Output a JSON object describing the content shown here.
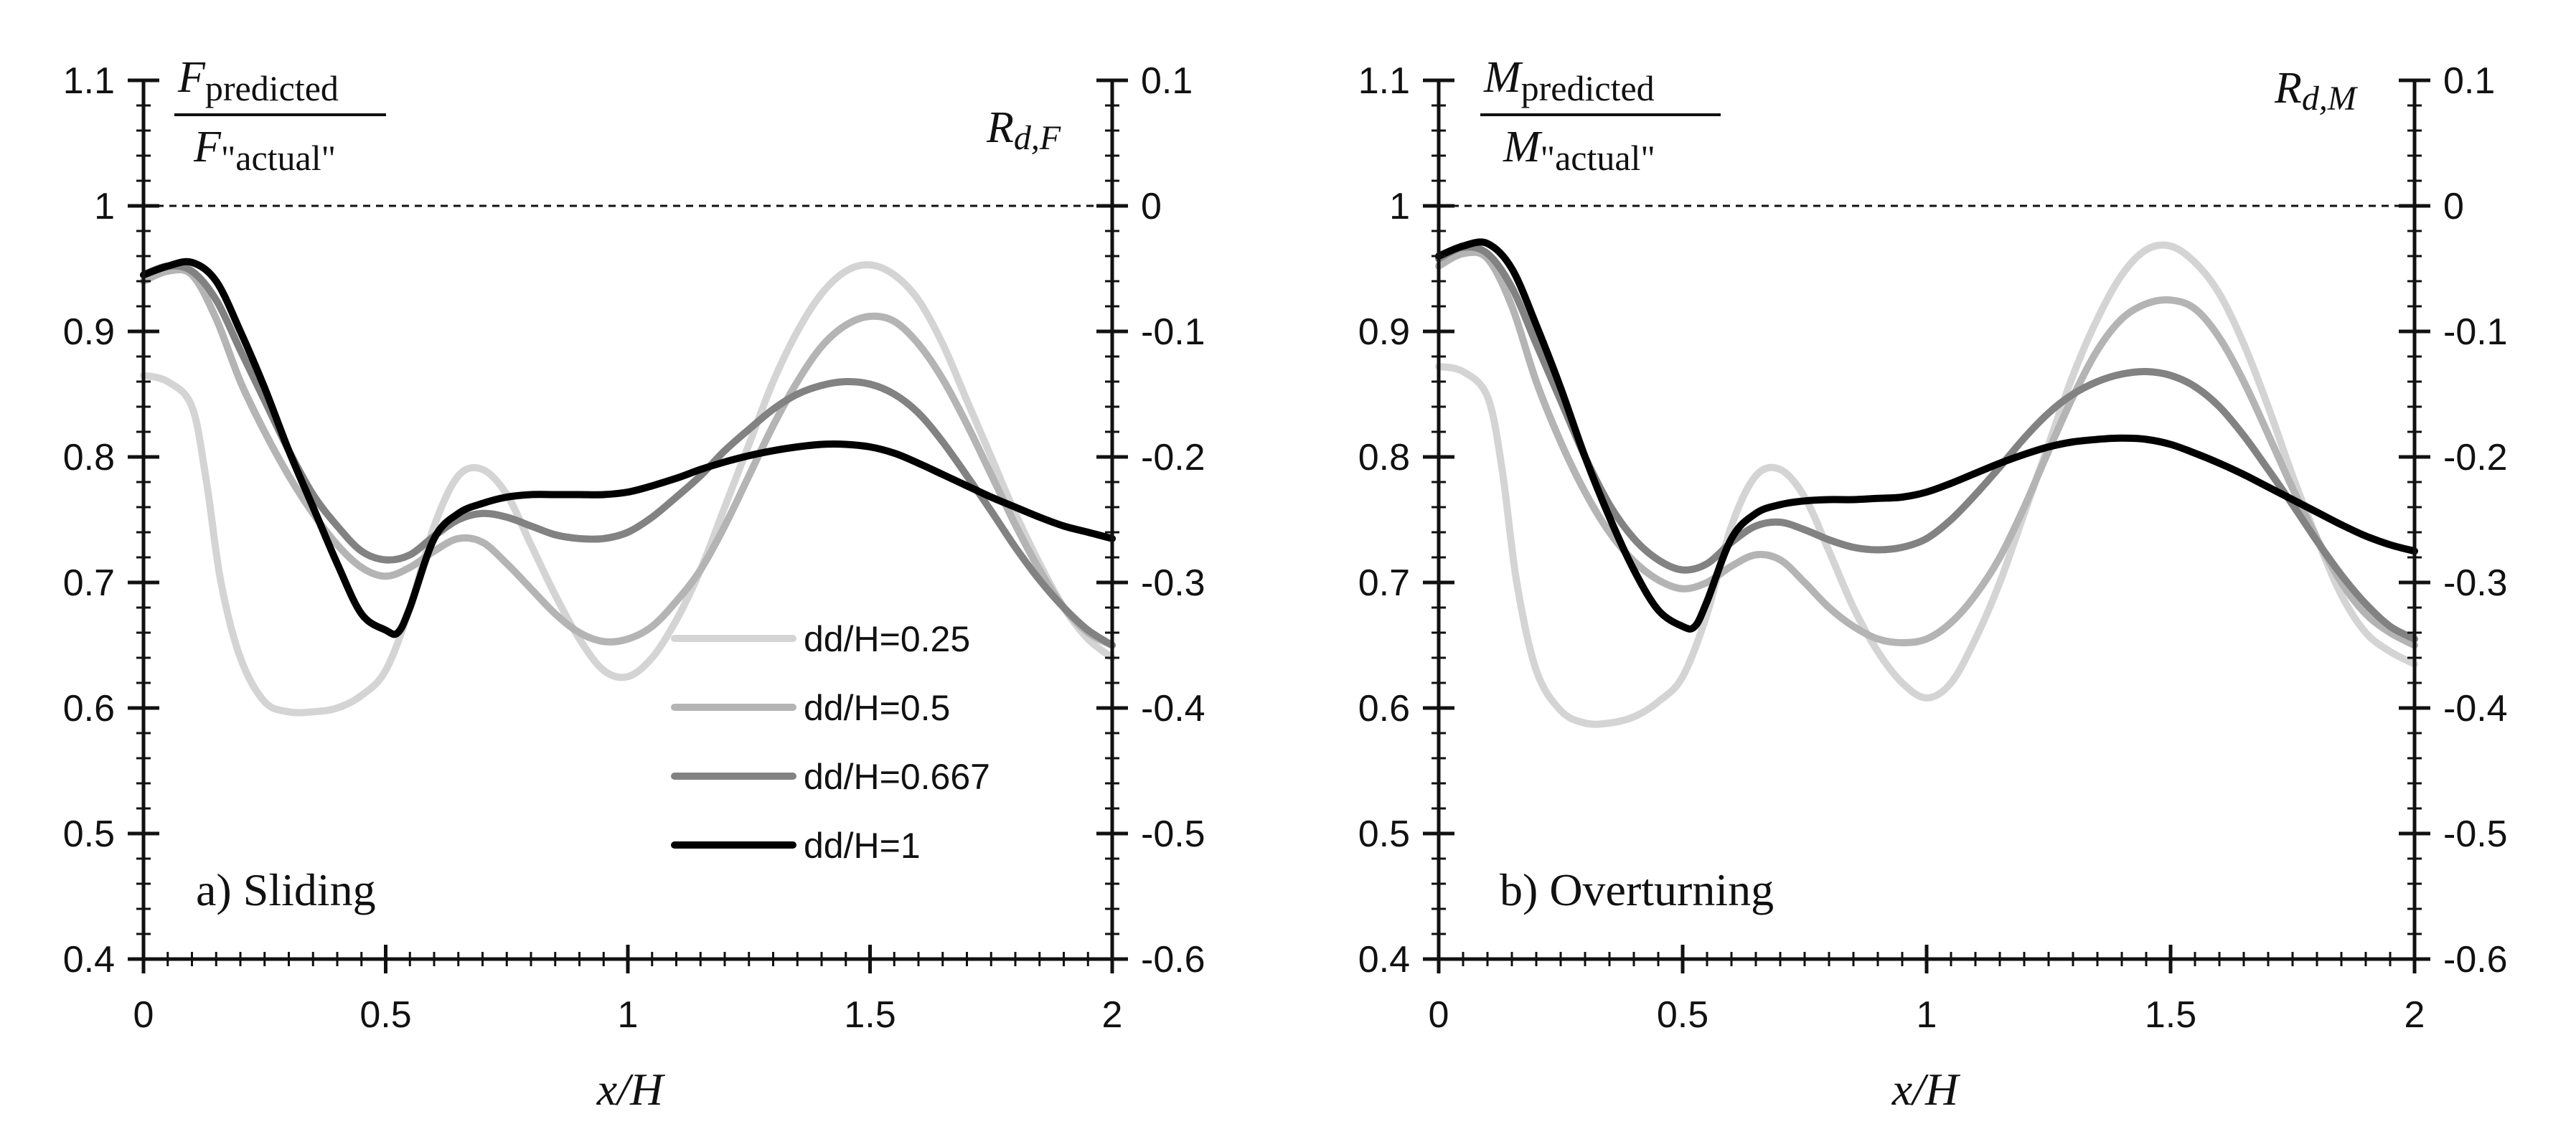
{
  "chart_data": [
    {
      "type": "line",
      "panel_label": "a) Sliding",
      "left_label": {
        "numerator": "F",
        "numerator_sub": "predicted",
        "denominator": "F",
        "denominator_sub": "\"actual\""
      },
      "right_label": {
        "main": "R",
        "sub": "d,F"
      },
      "xlabel": "x/H",
      "xlim": [
        0,
        2
      ],
      "ylim_left": [
        0.4,
        1.1
      ],
      "ylim_right": [
        -0.6,
        0.1
      ],
      "x_ticks": [
        "0",
        "0.5",
        "1",
        "1.5",
        "2"
      ],
      "y_ticks_left": [
        "0.4",
        "0.5",
        "0.6",
        "0.7",
        "0.8",
        "0.9",
        "1",
        "1.1"
      ],
      "y_ticks_right": [
        "-0.6",
        "-0.5",
        "-0.4",
        "-0.3",
        "-0.2",
        "-0.1",
        "0",
        "0.1"
      ],
      "reference_line": 1,
      "series": [
        {
          "name": "dd/H=0.25",
          "color": "#d4d4d4",
          "x": [
            0,
            0.05,
            0.1,
            0.13,
            0.16,
            0.2,
            0.25,
            0.3,
            0.35,
            0.4,
            0.45,
            0.5,
            0.55,
            0.6,
            0.65,
            0.7,
            0.75,
            0.8,
            0.85,
            0.9,
            0.95,
            1.0,
            1.05,
            1.1,
            1.15,
            1.2,
            1.25,
            1.3,
            1.35,
            1.4,
            1.45,
            1.5,
            1.55,
            1.6,
            1.65,
            1.7,
            1.75,
            1.8,
            1.85,
            1.9,
            1.95,
            2.0
          ],
          "values": [
            0.865,
            0.86,
            0.84,
            0.78,
            0.7,
            0.64,
            0.605,
            0.597,
            0.597,
            0.6,
            0.61,
            0.63,
            0.68,
            0.745,
            0.785,
            0.79,
            0.77,
            0.73,
            0.69,
            0.655,
            0.63,
            0.625,
            0.64,
            0.67,
            0.71,
            0.76,
            0.81,
            0.86,
            0.9,
            0.93,
            0.948,
            0.953,
            0.945,
            0.925,
            0.89,
            0.845,
            0.8,
            0.755,
            0.715,
            0.68,
            0.655,
            0.64
          ]
        },
        {
          "name": "dd/H=0.5",
          "color": "#b4b4b4",
          "x": [
            0,
            0.05,
            0.1,
            0.15,
            0.2,
            0.25,
            0.3,
            0.35,
            0.4,
            0.45,
            0.5,
            0.55,
            0.6,
            0.65,
            0.7,
            0.75,
            0.8,
            0.85,
            0.9,
            0.95,
            1.0,
            1.05,
            1.1,
            1.15,
            1.2,
            1.25,
            1.3,
            1.35,
            1.4,
            1.45,
            1.5,
            1.55,
            1.6,
            1.65,
            1.7,
            1.75,
            1.8,
            1.85,
            1.9,
            1.95,
            2.0
          ],
          "values": [
            0.94,
            0.948,
            0.945,
            0.91,
            0.86,
            0.82,
            0.785,
            0.755,
            0.73,
            0.712,
            0.705,
            0.712,
            0.725,
            0.735,
            0.732,
            0.715,
            0.695,
            0.675,
            0.66,
            0.653,
            0.655,
            0.665,
            0.685,
            0.71,
            0.745,
            0.785,
            0.825,
            0.86,
            0.888,
            0.905,
            0.912,
            0.908,
            0.89,
            0.862,
            0.826,
            0.786,
            0.746,
            0.71,
            0.68,
            0.66,
            0.65
          ]
        },
        {
          "name": "dd/H=0.667",
          "color": "#828282",
          "x": [
            0,
            0.05,
            0.1,
            0.15,
            0.2,
            0.25,
            0.3,
            0.35,
            0.4,
            0.45,
            0.5,
            0.55,
            0.6,
            0.65,
            0.7,
            0.75,
            0.8,
            0.85,
            0.9,
            0.95,
            1.0,
            1.05,
            1.1,
            1.15,
            1.2,
            1.25,
            1.3,
            1.35,
            1.4,
            1.45,
            1.5,
            1.55,
            1.6,
            1.65,
            1.7,
            1.75,
            1.8,
            1.85,
            1.9,
            1.95,
            2.0
          ],
          "values": [
            0.945,
            0.952,
            0.948,
            0.925,
            0.885,
            0.845,
            0.805,
            0.77,
            0.745,
            0.725,
            0.718,
            0.722,
            0.737,
            0.75,
            0.755,
            0.752,
            0.745,
            0.738,
            0.735,
            0.735,
            0.74,
            0.752,
            0.768,
            0.785,
            0.805,
            0.822,
            0.838,
            0.85,
            0.857,
            0.86,
            0.858,
            0.85,
            0.835,
            0.812,
            0.785,
            0.757,
            0.728,
            0.702,
            0.68,
            0.662,
            0.65
          ]
        },
        {
          "name": "dd/H=1",
          "color": "#000000",
          "x": [
            0,
            0.05,
            0.1,
            0.15,
            0.2,
            0.25,
            0.3,
            0.35,
            0.4,
            0.45,
            0.5,
            0.525,
            0.55,
            0.6,
            0.65,
            0.7,
            0.75,
            0.8,
            0.85,
            0.9,
            0.95,
            1.0,
            1.05,
            1.1,
            1.15,
            1.2,
            1.25,
            1.3,
            1.35,
            1.4,
            1.45,
            1.5,
            1.55,
            1.6,
            1.65,
            1.7,
            1.75,
            1.8,
            1.85,
            1.9,
            1.95,
            2.0
          ],
          "values": [
            0.945,
            0.952,
            0.955,
            0.94,
            0.9,
            0.855,
            0.805,
            0.76,
            0.715,
            0.675,
            0.662,
            0.66,
            0.68,
            0.735,
            0.755,
            0.763,
            0.768,
            0.77,
            0.77,
            0.77,
            0.77,
            0.772,
            0.777,
            0.783,
            0.79,
            0.796,
            0.801,
            0.805,
            0.808,
            0.81,
            0.81,
            0.808,
            0.803,
            0.795,
            0.786,
            0.777,
            0.768,
            0.76,
            0.752,
            0.745,
            0.74,
            0.735
          ]
        }
      ]
    },
    {
      "type": "line",
      "panel_label": "b) Overturning",
      "left_label": {
        "numerator": "M",
        "numerator_sub": "predicted",
        "denominator": "M",
        "denominator_sub": "\"actual\""
      },
      "right_label": {
        "main": "R",
        "sub": "d,M"
      },
      "xlabel": "x/H",
      "xlim": [
        0,
        2
      ],
      "ylim_left": [
        0.4,
        1.1
      ],
      "ylim_right": [
        -0.6,
        0.1
      ],
      "x_ticks": [
        "0",
        "0.5",
        "1",
        "1.5",
        "2"
      ],
      "y_ticks_left": [
        "0.4",
        "0.5",
        "0.6",
        "0.7",
        "0.8",
        "0.9",
        "1",
        "1.1"
      ],
      "y_ticks_right": [
        "-0.6",
        "-0.5",
        "-0.4",
        "-0.3",
        "-0.2",
        "-0.1",
        "0",
        "0.1"
      ],
      "reference_line": 1,
      "series": [
        {
          "name": "dd/H=0.25",
          "color": "#d4d4d4",
          "x": [
            0,
            0.05,
            0.1,
            0.13,
            0.16,
            0.2,
            0.25,
            0.3,
            0.35,
            0.4,
            0.45,
            0.5,
            0.55,
            0.6,
            0.65,
            0.7,
            0.75,
            0.8,
            0.85,
            0.9,
            0.95,
            1.0,
            1.05,
            1.1,
            1.15,
            1.2,
            1.25,
            1.3,
            1.35,
            1.4,
            1.45,
            1.5,
            1.55,
            1.6,
            1.65,
            1.7,
            1.75,
            1.8,
            1.85,
            1.9,
            1.95,
            2.0
          ],
          "values": [
            0.872,
            0.868,
            0.848,
            0.79,
            0.7,
            0.63,
            0.598,
            0.588,
            0.588,
            0.593,
            0.605,
            0.625,
            0.675,
            0.745,
            0.785,
            0.79,
            0.768,
            0.725,
            0.68,
            0.645,
            0.62,
            0.608,
            0.62,
            0.655,
            0.7,
            0.755,
            0.81,
            0.865,
            0.91,
            0.945,
            0.965,
            0.968,
            0.955,
            0.93,
            0.89,
            0.84,
            0.785,
            0.735,
            0.69,
            0.66,
            0.645,
            0.635
          ]
        },
        {
          "name": "dd/H=0.5",
          "color": "#b4b4b4",
          "x": [
            0,
            0.05,
            0.1,
            0.15,
            0.2,
            0.25,
            0.3,
            0.35,
            0.4,
            0.45,
            0.5,
            0.55,
            0.6,
            0.65,
            0.7,
            0.75,
            0.8,
            0.85,
            0.9,
            0.95,
            1.0,
            1.05,
            1.1,
            1.15,
            1.2,
            1.25,
            1.3,
            1.35,
            1.4,
            1.45,
            1.5,
            1.55,
            1.6,
            1.65,
            1.7,
            1.75,
            1.8,
            1.85,
            1.9,
            1.95,
            2.0
          ],
          "values": [
            0.952,
            0.962,
            0.958,
            0.92,
            0.86,
            0.812,
            0.772,
            0.74,
            0.717,
            0.702,
            0.695,
            0.7,
            0.713,
            0.722,
            0.718,
            0.7,
            0.68,
            0.665,
            0.655,
            0.652,
            0.655,
            0.668,
            0.69,
            0.72,
            0.76,
            0.805,
            0.848,
            0.885,
            0.91,
            0.922,
            0.925,
            0.918,
            0.895,
            0.86,
            0.818,
            0.775,
            0.735,
            0.7,
            0.675,
            0.66,
            0.65
          ]
        },
        {
          "name": "dd/H=0.667",
          "color": "#828282",
          "x": [
            0,
            0.05,
            0.1,
            0.15,
            0.2,
            0.25,
            0.3,
            0.35,
            0.4,
            0.45,
            0.5,
            0.55,
            0.6,
            0.65,
            0.7,
            0.75,
            0.8,
            0.85,
            0.9,
            0.95,
            1.0,
            1.05,
            1.1,
            1.15,
            1.2,
            1.25,
            1.3,
            1.35,
            1.4,
            1.45,
            1.5,
            1.55,
            1.6,
            1.65,
            1.7,
            1.75,
            1.8,
            1.85,
            1.9,
            1.95,
            2.0
          ],
          "values": [
            0.958,
            0.967,
            0.962,
            0.935,
            0.89,
            0.845,
            0.8,
            0.762,
            0.735,
            0.718,
            0.71,
            0.715,
            0.732,
            0.745,
            0.748,
            0.742,
            0.734,
            0.728,
            0.726,
            0.728,
            0.735,
            0.75,
            0.77,
            0.792,
            0.815,
            0.835,
            0.85,
            0.86,
            0.866,
            0.868,
            0.865,
            0.856,
            0.84,
            0.817,
            0.79,
            0.762,
            0.733,
            0.706,
            0.683,
            0.665,
            0.655
          ]
        },
        {
          "name": "dd/H=1",
          "color": "#000000",
          "x": [
            0,
            0.05,
            0.1,
            0.15,
            0.2,
            0.25,
            0.3,
            0.35,
            0.4,
            0.45,
            0.5,
            0.525,
            0.55,
            0.6,
            0.65,
            0.7,
            0.75,
            0.8,
            0.85,
            0.9,
            0.95,
            1.0,
            1.05,
            1.1,
            1.15,
            1.2,
            1.25,
            1.3,
            1.35,
            1.4,
            1.45,
            1.5,
            1.55,
            1.6,
            1.65,
            1.7,
            1.75,
            1.8,
            1.85,
            1.9,
            1.95,
            2.0
          ],
          "values": [
            0.96,
            0.968,
            0.97,
            0.95,
            0.905,
            0.855,
            0.8,
            0.752,
            0.71,
            0.678,
            0.665,
            0.665,
            0.685,
            0.735,
            0.755,
            0.762,
            0.765,
            0.766,
            0.766,
            0.767,
            0.768,
            0.772,
            0.779,
            0.787,
            0.795,
            0.802,
            0.808,
            0.812,
            0.814,
            0.815,
            0.814,
            0.81,
            0.803,
            0.795,
            0.786,
            0.776,
            0.766,
            0.756,
            0.746,
            0.737,
            0.73,
            0.725
          ]
        }
      ]
    }
  ]
}
